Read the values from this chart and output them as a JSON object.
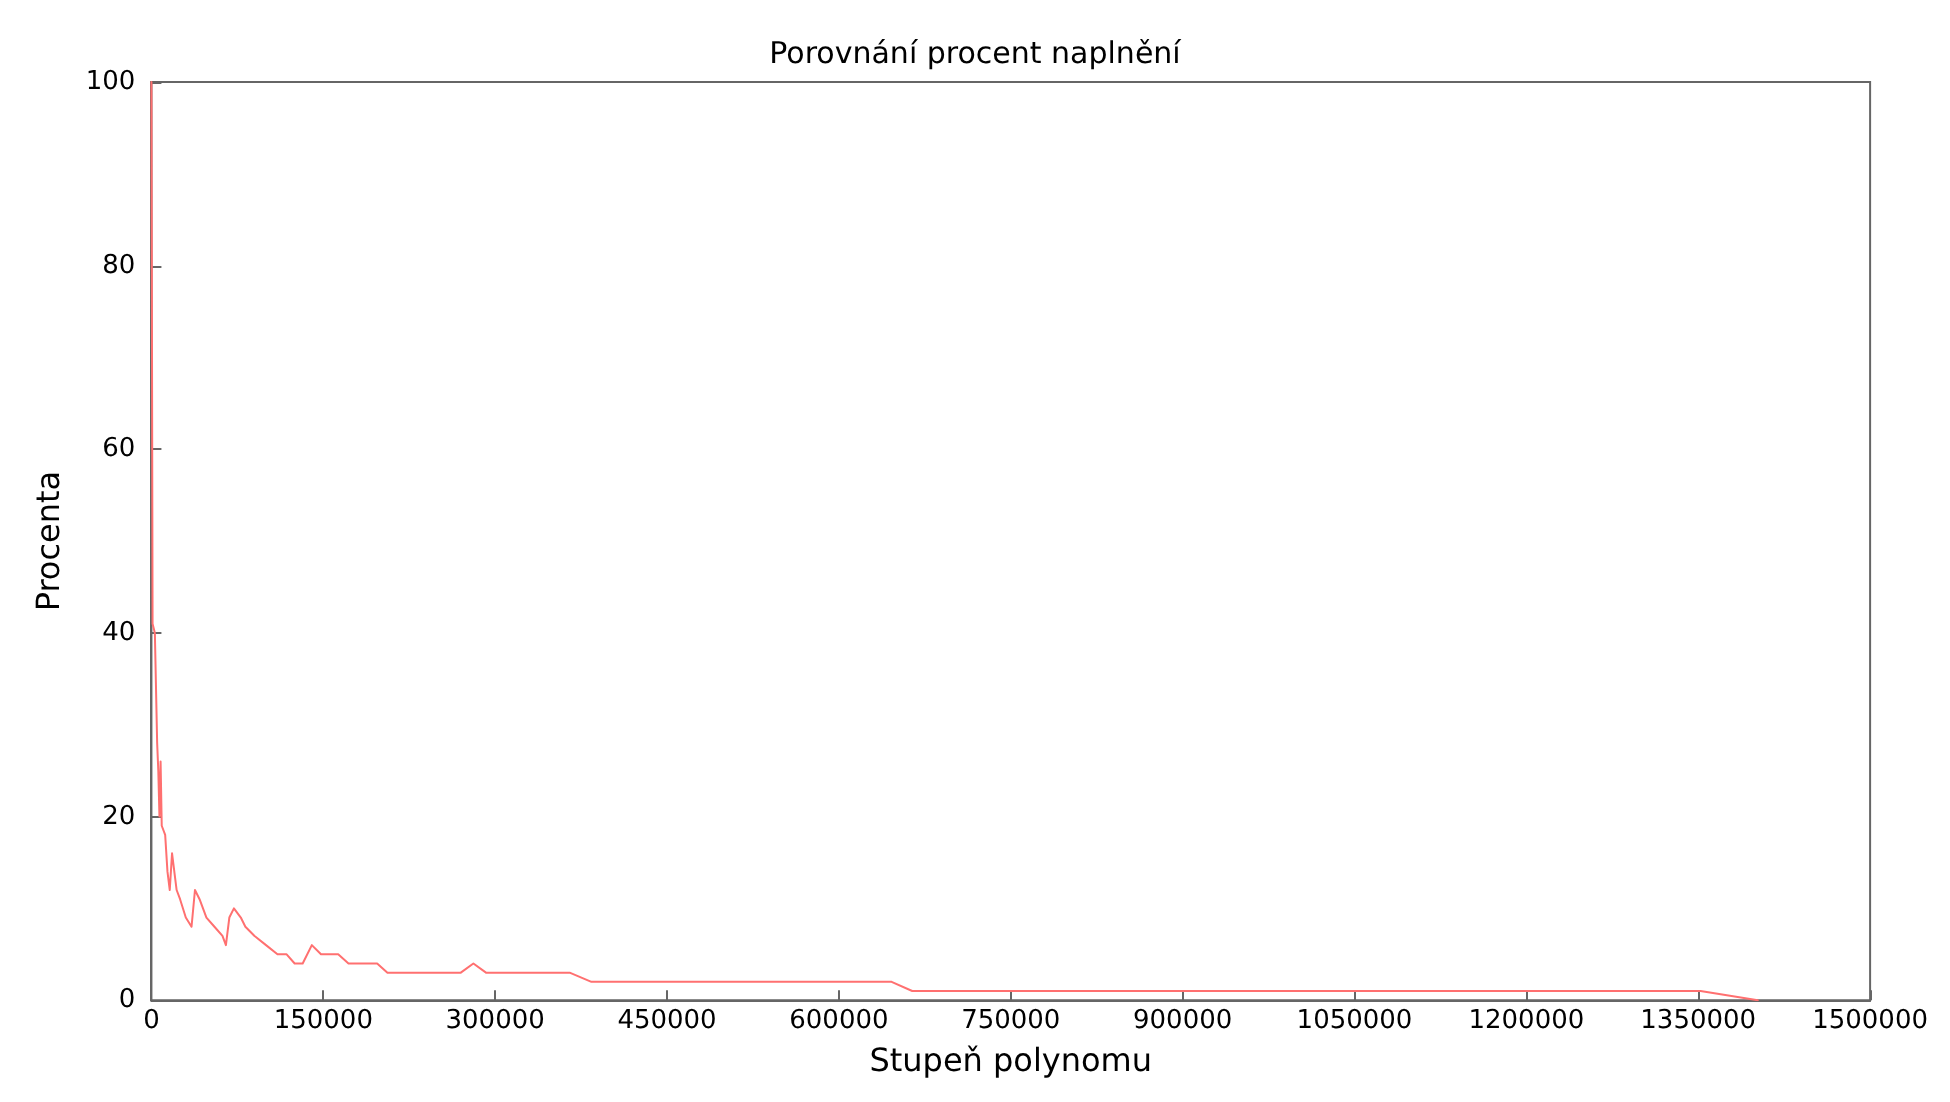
{
  "chart_data": {
    "type": "line",
    "title": "Porovnání procent naplnění",
    "xlabel": "Stupeň polynomu",
    "ylabel": "Procenta",
    "xlim": [
      0,
      1500000
    ],
    "xticks": [
      0,
      150000,
      300000,
      450000,
      600000,
      750000,
      900000,
      1050000,
      1200000,
      1350000,
      1500000
    ],
    "ylim": [
      0,
      100
    ],
    "yticks": [
      0,
      20,
      40,
      60,
      80,
      100
    ],
    "grid": false,
    "marker": "none",
    "line_style": "solid",
    "series": [
      {
        "color": "#ff7070",
        "x": [
          0,
          1000,
          3000,
          5000,
          6000,
          7000,
          8000,
          9000,
          12000,
          14000,
          16000,
          18000,
          22000,
          25000,
          30000,
          35000,
          38000,
          42000,
          48000,
          55000,
          62000,
          65000,
          68000,
          72000,
          78000,
          82000,
          90000,
          100000,
          110000,
          118000,
          125000,
          132000,
          140000,
          148000,
          163000,
          172000,
          197000,
          206000,
          270000,
          281000,
          292000,
          365000,
          384000,
          646000,
          664000,
          1352000,
          1402000
        ],
        "values": [
          100,
          41,
          40,
          28,
          25,
          20,
          26,
          19,
          18,
          14,
          12,
          16,
          12,
          11,
          9,
          8,
          12,
          11,
          9,
          8,
          7,
          6,
          9,
          10,
          9,
          8,
          7,
          6,
          5,
          5,
          4,
          4,
          6,
          5,
          5,
          4,
          4,
          3,
          3,
          4,
          3,
          3,
          2,
          2,
          1,
          1,
          0
        ]
      }
    ]
  }
}
